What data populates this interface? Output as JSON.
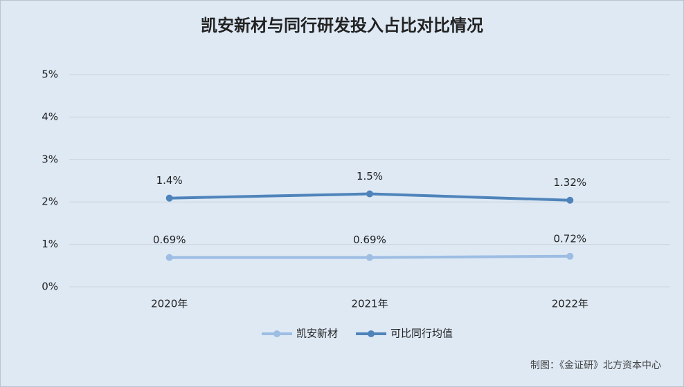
{
  "chart_data": {
    "type": "line",
    "stacked": true,
    "title": "凯安新材与同行研发投入占比对比情况",
    "categories": [
      "2020年",
      "2021年",
      "2022年"
    ],
    "series": [
      {
        "name": "凯安新材",
        "color": "#9dbde3",
        "values": [
          0.69,
          0.69,
          0.72
        ],
        "value_labels": [
          "0.69%",
          "0.69%",
          "0.72%"
        ]
      },
      {
        "name": "可比同行均值",
        "color": "#4f84bb",
        "values": [
          1.4,
          1.5,
          1.32
        ],
        "value_labels": [
          "1.4%",
          "1.5%",
          "1.32%"
        ]
      }
    ],
    "ylim": [
      0,
      5
    ],
    "yticks": [
      {
        "value": 0,
        "label": "0%"
      },
      {
        "value": 1,
        "label": "1%"
      },
      {
        "value": 2,
        "label": "2%"
      },
      {
        "value": 3,
        "label": "3%"
      },
      {
        "value": 4,
        "label": "4%"
      },
      {
        "value": 5,
        "label": "5%"
      }
    ],
    "grid": true,
    "legend": "bottom",
    "source": "制图：《金证研》北方资本中心"
  }
}
